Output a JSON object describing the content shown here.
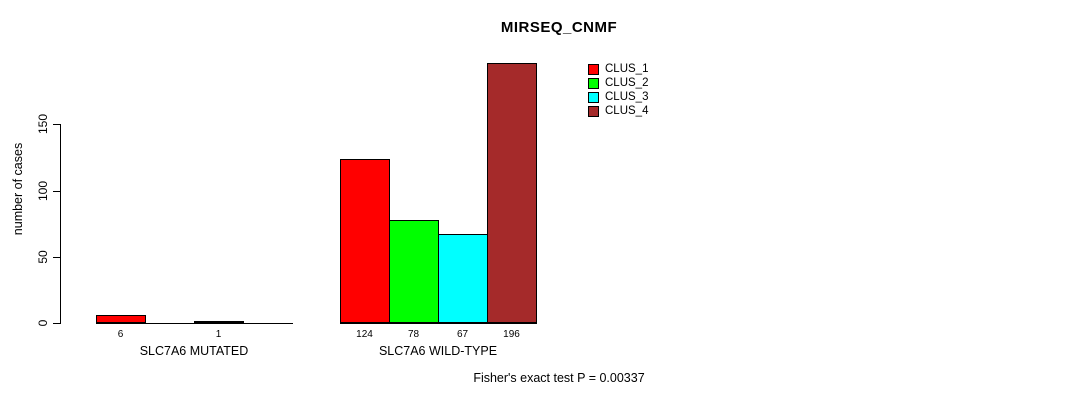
{
  "chart_data": {
    "type": "bar",
    "title": "MIRSEQ_CNMF",
    "ylabel": "number of cases",
    "xlabel": "",
    "ylim": [
      0,
      150
    ],
    "yticks": [
      0,
      50,
      100,
      150
    ],
    "grid": false,
    "legend_position": "top-right",
    "categories": [
      "SLC7A6 MUTATED",
      "SLC7A6 WILD-TYPE"
    ],
    "series": [
      {
        "name": "CLUS_1",
        "color": "#ff0000",
        "values": [
          6,
          124
        ]
      },
      {
        "name": "CLUS_2",
        "color": "#00ff00",
        "values": [
          0,
          78
        ]
      },
      {
        "name": "CLUS_3",
        "color": "#00ffff",
        "values": [
          1,
          67
        ]
      },
      {
        "name": "CLUS_4",
        "color": "#a52a2a",
        "values": [
          0,
          196
        ]
      }
    ],
    "bar_value_labels": [
      [
        "6",
        "",
        "1",
        ""
      ],
      [
        "124",
        "78",
        "67",
        "196"
      ]
    ],
    "footnote": "Fisher's exact test P = 0.00337"
  },
  "colors": {
    "background": "#ffffff",
    "axis": "#000000",
    "text": "#000000"
  }
}
